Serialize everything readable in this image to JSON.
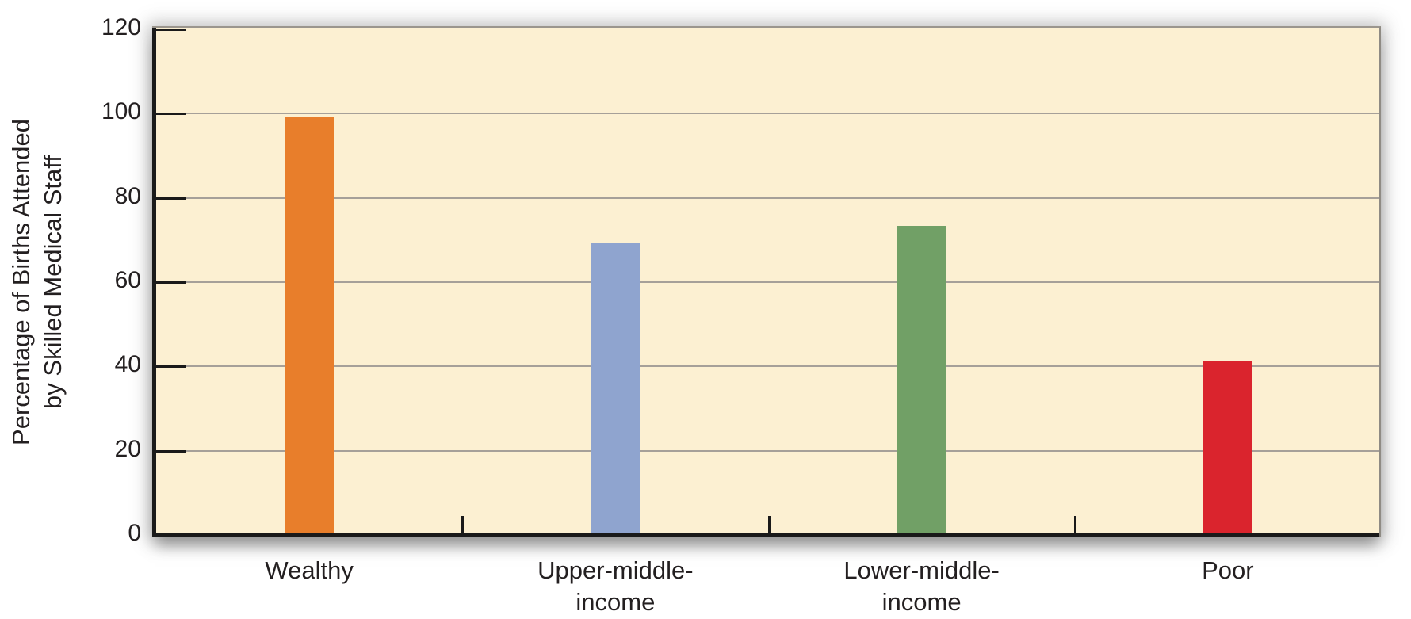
{
  "chart_data": {
    "type": "bar",
    "title": "",
    "xlabel": "",
    "ylabel_line1": "Percentage of Births Attended",
    "ylabel_line2": "by Skilled Medical Staff",
    "categories": [
      {
        "id": "wealthy",
        "label_lines": [
          "Wealthy"
        ]
      },
      {
        "id": "upper-middle-income",
        "label_lines": [
          "Upper-middle-",
          "income"
        ]
      },
      {
        "id": "lower-middle-income",
        "label_lines": [
          "Lower-middle-",
          "income"
        ]
      },
      {
        "id": "poor",
        "label_lines": [
          "Poor"
        ]
      }
    ],
    "values": [
      99,
      69,
      73,
      41
    ],
    "bar_colors": [
      "#e87e2b",
      "#8fa4cf",
      "#71a066",
      "#da242d"
    ],
    "yticks": [
      0,
      20,
      40,
      60,
      80,
      100,
      120
    ],
    "ylim": [
      0,
      120
    ],
    "grid": true,
    "legend": false,
    "colors": {
      "plot_background": "#fcf0d2",
      "page_background": "#ffffff",
      "gridline": "#a6a099",
      "axis": "#1a1a1a",
      "text": "#231f20"
    }
  }
}
